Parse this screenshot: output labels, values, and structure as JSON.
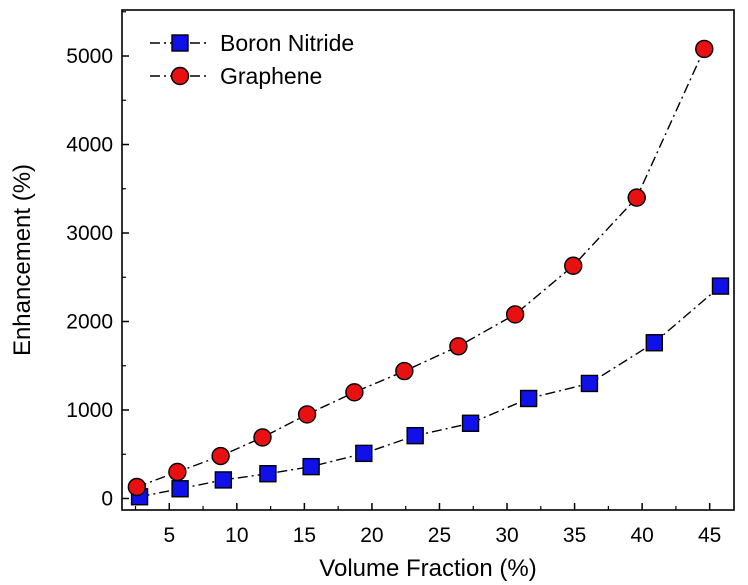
{
  "chart_data": {
    "type": "line",
    "xlabel": "Volume Fraction (%)",
    "ylabel": "Enhancement (%)",
    "xlim": [
      1.5,
      46.8
    ],
    "ylim": [
      -130,
      5520
    ],
    "xticks": [
      5,
      10,
      15,
      20,
      25,
      30,
      35,
      40,
      45
    ],
    "yticks": [
      0,
      1000,
      2000,
      3000,
      4000,
      5000
    ],
    "grid": false,
    "legend_position": "top-left",
    "line_style": "dash-dot",
    "series": [
      {
        "name": "Boron Nitride",
        "marker": "square",
        "color": "#1010e8",
        "x": [
          2.8,
          5.8,
          9.0,
          12.3,
          15.5,
          19.4,
          23.2,
          27.3,
          31.6,
          36.1,
          40.9,
          45.8
        ],
        "y": [
          20,
          110,
          210,
          280,
          360,
          510,
          710,
          850,
          1130,
          1300,
          1760,
          2400
        ]
      },
      {
        "name": "Graphene",
        "marker": "circle",
        "color": "#e81010",
        "x": [
          2.6,
          5.6,
          8.8,
          11.9,
          15.2,
          18.7,
          22.4,
          26.4,
          30.6,
          34.9,
          39.6,
          44.6
        ],
        "y": [
          130,
          300,
          480,
          690,
          950,
          1200,
          1440,
          1720,
          2080,
          2630,
          3400,
          5080
        ]
      }
    ]
  }
}
